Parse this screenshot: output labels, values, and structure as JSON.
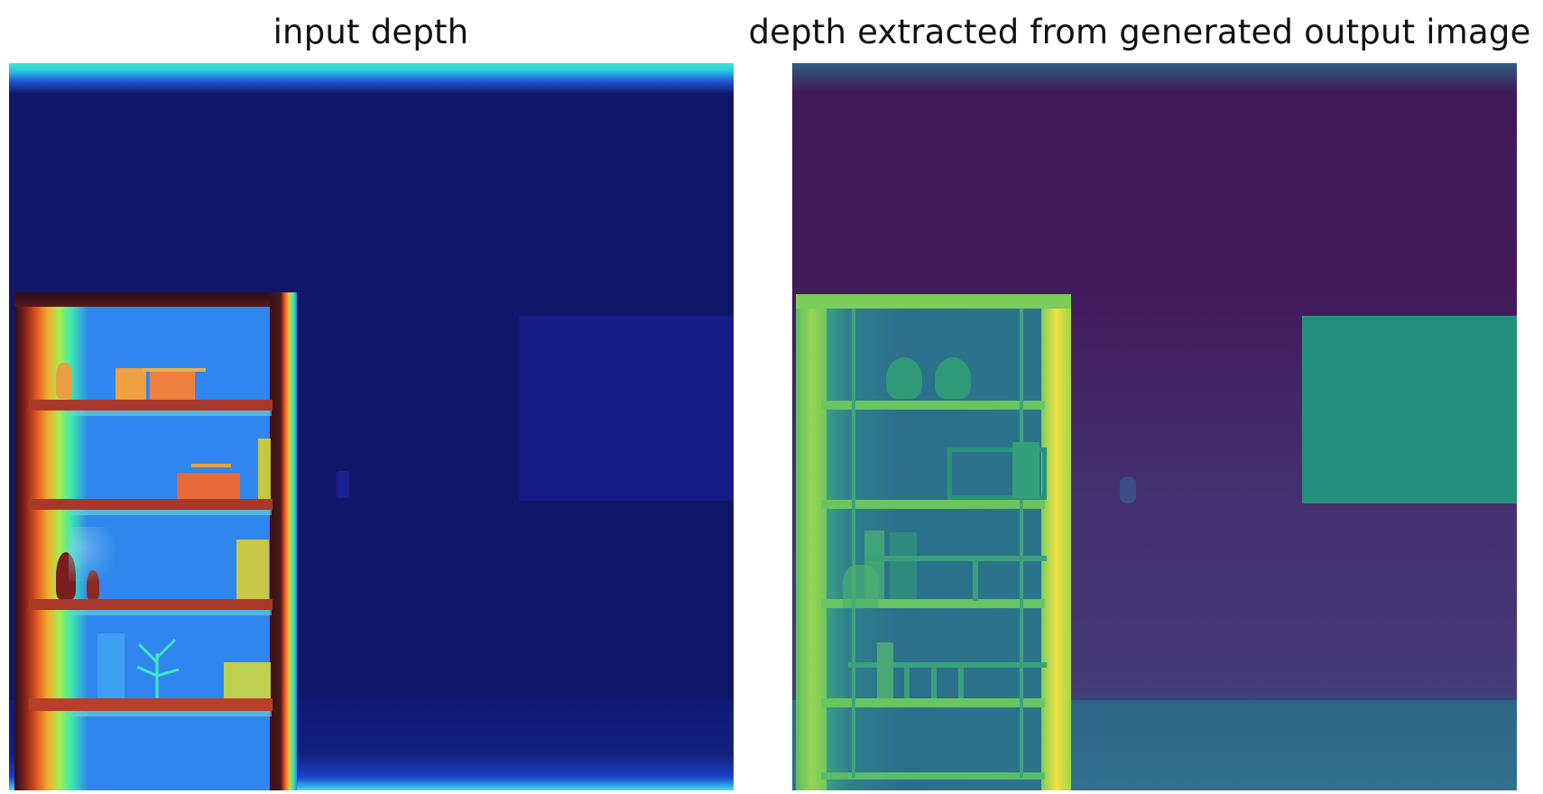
{
  "titles": {
    "left": "input depth",
    "right": "depth extracted from generated output image"
  },
  "panels": {
    "left": {
      "colormap": "turbo",
      "colors": {
        "far": "#11166a",
        "mid": "#2f86ee",
        "near": "#3aeac2",
        "shelf": "#b83f2a",
        "dark": "#2a0f1e",
        "object_orange": "#f09040",
        "object_yellow": "#c5c740"
      }
    },
    "right": {
      "colormap": "viridis",
      "colors": {
        "far": "#40195a",
        "mid": "#2b6c8c",
        "near": "#f0e043",
        "green": "#7ccd5a",
        "teal": "#249a8a"
      }
    }
  }
}
